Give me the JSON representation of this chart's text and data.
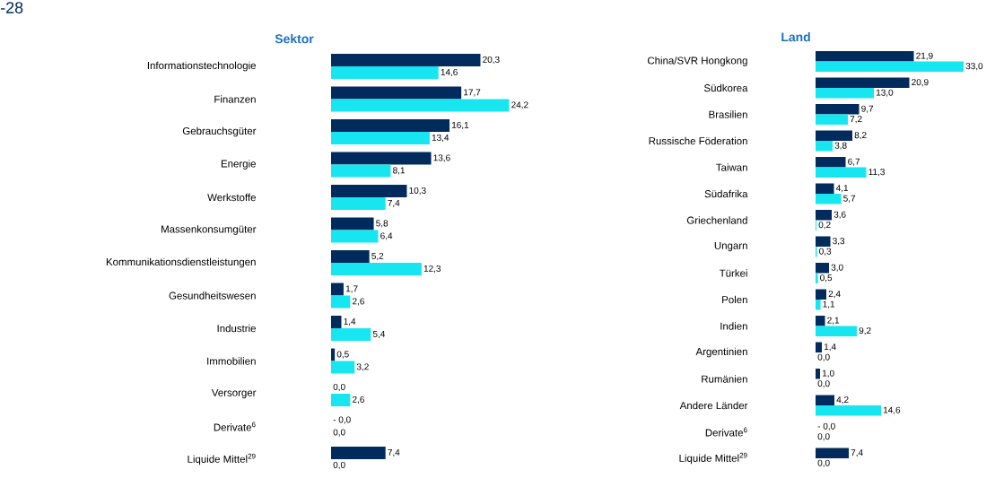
{
  "chart_data": [
    {
      "type": "bar",
      "orientation": "horizontal",
      "title": "Sektor",
      "annotations": [
        "-28"
      ],
      "categories": [
        "Informationstechnologie",
        "Finanzen",
        "Gebrauchsgüter",
        "Energie",
        "Werkstoffe",
        "Massenkonsumgüter",
        "Kommunikationsdienstleistungen",
        "Gesundheitswesen",
        "Industrie",
        "Immobilien",
        "Versorger",
        "Derivate$^{6}$",
        "Liquide Mittel$^{29}$"
      ],
      "series": [
        {
          "color": "#002b5c",
          "values": [
            20.3,
            17.7,
            16.1,
            13.6,
            10.3,
            5.8,
            5.2,
            1.7,
            1.4,
            0.5,
            0.0,
            0.0,
            7.4
          ],
          "value_labels": [
            "20,3",
            "17,7",
            "16,1",
            "13,6",
            "10,3",
            "5,8",
            "5,2",
            "1,7",
            "1,4",
            "0,5",
            "0,0",
            "- 0,0",
            "7,4"
          ]
        },
        {
          "color": "#17e6f0",
          "values": [
            14.6,
            24.2,
            13.4,
            8.1,
            7.4,
            6.4,
            12.3,
            2.6,
            5.4,
            3.2,
            2.6,
            0.0,
            0.0
          ],
          "value_labels": [
            "14,6",
            "24,2",
            "13,4",
            "8,1",
            "7,4",
            "6,4",
            "12,3",
            "2,6",
            "5,4",
            "3,2",
            "2,6",
            "0,0",
            "0,0"
          ]
        }
      ]
    },
    {
      "type": "bar",
      "orientation": "horizontal",
      "title": "Land",
      "categories": [
        "China/SVR Hongkong",
        "Südkorea",
        "Brasilien",
        "Russische Föderation",
        "Taiwan",
        "Südafrika",
        "Griechenland",
        "Ungarn",
        "Türkei",
        "Polen",
        "Indien",
        "Argentinien",
        "Rumänien",
        "Andere Länder",
        "Derivate$^{6}$",
        "Liquide Mittel$^{29}$"
      ],
      "series": [
        {
          "color": "#002b5c",
          "values": [
            21.9,
            20.9,
            9.7,
            8.2,
            6.7,
            4.1,
            3.6,
            3.3,
            3.0,
            2.4,
            2.1,
            1.4,
            1.0,
            4.2,
            0.0,
            7.4
          ],
          "value_labels": [
            "21,9",
            "20,9",
            "9,7",
            "8,2",
            "6,7",
            "4,1",
            "3,6",
            "3,3",
            "3,0",
            "2,4",
            "2,1",
            "1,4",
            "1,0",
            "4,2",
            "- 0,0",
            "7,4"
          ]
        },
        {
          "color": "#17e6f0",
          "values": [
            33.0,
            13.0,
            7.2,
            3.8,
            11.3,
            5.7,
            0.2,
            0.3,
            0.5,
            1.1,
            9.2,
            0.0,
            0.0,
            14.6,
            0.0,
            0.0
          ],
          "value_labels": [
            "33,0",
            "13,0",
            "7,2",
            "3,8",
            "11,3",
            "5,7",
            "0,2",
            "0,3",
            "0,5",
            "1,1",
            "9,2",
            "0,0",
            "0,0",
            "14,6",
            "0,0",
            "0,0"
          ]
        }
      ]
    }
  ]
}
